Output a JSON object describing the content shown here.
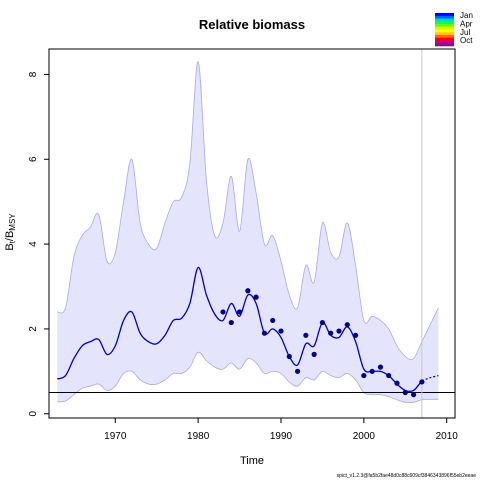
{
  "chart_data": {
    "type": "line",
    "title": "Relative biomass",
    "xlabel": "Time",
    "ylabel": {
      "main": "B",
      "sub1": "t",
      "sep": "/B",
      "sub2": "MSY"
    },
    "xlim": [
      1962,
      2011
    ],
    "ylim": [
      -0.1,
      8.6
    ],
    "x_ticks": [
      1970,
      1980,
      1990,
      2000,
      2010
    ],
    "y_ticks": [
      0,
      2,
      4,
      6,
      8
    ],
    "colors": {
      "band_fill": "#e4e4fc",
      "band_edge": "#a8a8f0",
      "line": "#0000cc",
      "points": "#00008b",
      "reference": "#000000",
      "vline": "#c8c8c8"
    },
    "estimate": {
      "x": [
        1963,
        1964,
        1965,
        1966,
        1967,
        1968,
        1969,
        1970,
        1971,
        1972,
        1973,
        1974,
        1975,
        1976,
        1977,
        1978,
        1979,
        1980,
        1981,
        1982,
        1983,
        1984,
        1985,
        1986,
        1987,
        1988,
        1989,
        1990,
        1991,
        1992,
        1993,
        1994,
        1995,
        1996,
        1997,
        1998,
        1999,
        2000,
        2001,
        2002,
        2003,
        2004,
        2005,
        2006,
        2007
      ],
      "y": [
        0.82,
        0.9,
        1.3,
        1.6,
        1.7,
        1.75,
        1.4,
        1.6,
        2.2,
        2.4,
        1.9,
        1.7,
        1.65,
        1.85,
        2.2,
        2.25,
        2.6,
        3.45,
        2.8,
        2.35,
        2.2,
        2.6,
        2.3,
        2.8,
        2.6,
        1.9,
        2.0,
        1.8,
        1.35,
        1.15,
        1.65,
        1.6,
        2.15,
        1.85,
        1.8,
        2.05,
        1.7,
        1.05,
        1.0,
        1.0,
        0.9,
        0.7,
        0.55,
        0.55,
        0.78
      ]
    },
    "forecast": {
      "x": [
        2007,
        2008,
        2009
      ],
      "y": [
        0.78,
        0.85,
        0.9
      ]
    },
    "ci_upper": {
      "x": [
        1963,
        1964,
        1965,
        1966,
        1967,
        1968,
        1969,
        1970,
        1971,
        1972,
        1973,
        1974,
        1975,
        1976,
        1977,
        1978,
        1979,
        1980,
        1981,
        1982,
        1983,
        1984,
        1985,
        1986,
        1987,
        1988,
        1989,
        1990,
        1991,
        1992,
        1993,
        1994,
        1995,
        1996,
        1997,
        1998,
        1999,
        2000,
        2001,
        2002,
        2003,
        2004,
        2005,
        2006,
        2007,
        2008,
        2009
      ],
      "y": [
        2.4,
        2.5,
        3.7,
        4.2,
        4.4,
        4.7,
        3.6,
        3.8,
        5.0,
        6.0,
        4.5,
        4.0,
        3.9,
        4.5,
        5.0,
        5.1,
        5.9,
        8.3,
        5.5,
        4.2,
        4.5,
        5.6,
        4.3,
        6.0,
        5.2,
        4.0,
        4.2,
        3.6,
        2.8,
        2.5,
        3.5,
        3.1,
        4.5,
        3.8,
        3.7,
        4.5,
        3.5,
        2.2,
        2.3,
        2.2,
        2.0,
        1.6,
        1.35,
        1.3,
        1.7,
        2.1,
        2.5
      ]
    },
    "ci_lower": {
      "x": [
        1963,
        1964,
        1965,
        1966,
        1967,
        1968,
        1969,
        1970,
        1971,
        1972,
        1973,
        1974,
        1975,
        1976,
        1977,
        1978,
        1979,
        1980,
        1981,
        1982,
        1983,
        1984,
        1985,
        1986,
        1987,
        1988,
        1989,
        1990,
        1991,
        1992,
        1993,
        1994,
        1995,
        1996,
        1997,
        1998,
        1999,
        2000,
        2001,
        2002,
        2003,
        2004,
        2005,
        2006,
        2007,
        2008,
        2009
      ],
      "y": [
        0.28,
        0.3,
        0.45,
        0.6,
        0.65,
        0.7,
        0.55,
        0.65,
        0.95,
        1.0,
        0.8,
        0.7,
        0.7,
        0.8,
        0.95,
        0.95,
        1.1,
        1.45,
        1.25,
        1.1,
        1.05,
        1.2,
        1.05,
        1.3,
        1.2,
        0.95,
        1.0,
        0.95,
        0.75,
        0.65,
        0.85,
        0.8,
        1.0,
        0.9,
        0.85,
        0.95,
        0.8,
        0.5,
        0.45,
        0.45,
        0.4,
        0.33,
        0.27,
        0.27,
        0.33,
        0.34,
        0.34
      ]
    },
    "observations": {
      "x": [
        1983,
        1984,
        1985,
        1986,
        1987,
        1988,
        1989,
        1990,
        1991,
        1992,
        1993,
        1994,
        1995,
        1996,
        1997,
        1998,
        1999,
        2000,
        2001,
        2002,
        2003,
        2004,
        2005,
        2006,
        2007
      ],
      "y": [
        2.4,
        2.15,
        2.4,
        2.9,
        2.75,
        1.9,
        2.2,
        1.95,
        1.35,
        1.0,
        1.85,
        1.4,
        2.15,
        1.9,
        1.95,
        2.1,
        1.85,
        0.9,
        1.0,
        1.1,
        0.9,
        0.72,
        0.5,
        0.45,
        0.75
      ]
    },
    "reference_line_y": 0.5,
    "vline_x": 2007,
    "legend": {
      "placement": "top-right",
      "labels": [
        "Jan",
        "Apr",
        "Jul",
        "Oct"
      ],
      "colors": [
        "#0000ff",
        "#0066ff",
        "#00ccff",
        "#00ff66",
        "#66ff00",
        "#ccff00",
        "#ffff00",
        "#ffcc00",
        "#ff6600",
        "#ff0000",
        "#cc0066",
        "#990099"
      ]
    },
    "footer_text": "spict_v1.2.3@fa5b2fae48d0c88c609cf3846343896f55eb2eeae"
  }
}
